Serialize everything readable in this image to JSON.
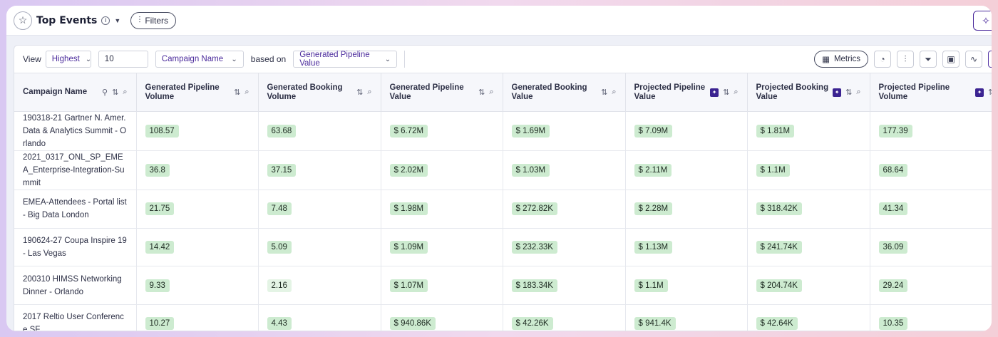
{
  "header": {
    "title": "Top Events",
    "filters_label": "Filters"
  },
  "controls": {
    "view_label": "View",
    "sort_value": "Highest",
    "count_value": "10",
    "dimension_value": "Campaign Name",
    "based_on_label": "based on",
    "metric_value": "Generated Pipeline Value",
    "metrics_button": "Metrics"
  },
  "table": {
    "columns": [
      {
        "label": "Campaign Name",
        "ai": false,
        "pin": true
      },
      {
        "label": "Generated Pipeline Volume",
        "ai": false,
        "pin": false
      },
      {
        "label": "Generated Booking Volume",
        "ai": false,
        "pin": false
      },
      {
        "label": "Generated Pipeline Value",
        "ai": false,
        "pin": false
      },
      {
        "label": "Generated Booking Value",
        "ai": false,
        "pin": false
      },
      {
        "label": "Projected Pipeline Value",
        "ai": true,
        "pin": false
      },
      {
        "label": "Projected Booking Value",
        "ai": true,
        "pin": false
      },
      {
        "label": "Projected Pipeline Volume",
        "ai": true,
        "pin": false
      }
    ],
    "rows": [
      [
        "190318-21 Gartner N. Amer. Data & Analytics Summit - Orlando",
        "108.57",
        "63.68",
        "$ 6.72M",
        "$ 1.69M",
        "$ 7.09M",
        "$ 1.81M",
        "177.39"
      ],
      [
        "2021_0317_ONL_SP_EMEA_Enterprise-Integration-Summit",
        "36.8",
        "37.15",
        "$ 2.02M",
        "$ 1.03M",
        "$ 2.11M",
        "$ 1.1M",
        "68.64"
      ],
      [
        "EMEA-Attendees - Portal list - Big Data London",
        "21.75",
        "7.48",
        "$ 1.98M",
        "$ 272.82K",
        "$ 2.28M",
        "$ 318.42K",
        "41.34"
      ],
      [
        "190624-27 Coupa Inspire 19 - Las Vegas",
        "14.42",
        "5.09",
        "$ 1.09M",
        "$ 232.33K",
        "$ 1.13M",
        "$ 241.74K",
        "36.09"
      ],
      [
        "200310 HIMSS Networking Dinner - Orlando",
        "9.33",
        "2.16",
        "$ 1.07M",
        "$ 183.34K",
        "$ 1.1M",
        "$ 204.74K",
        "29.24"
      ],
      [
        "2017 Reltio User Conference SF",
        "10.27",
        "4.43",
        "$ 940.86K",
        "$ 42.26K",
        "$ 941.4K",
        "$ 42.64K",
        "10.35"
      ]
    ],
    "light_cells": [
      [
        4,
        2
      ]
    ]
  }
}
